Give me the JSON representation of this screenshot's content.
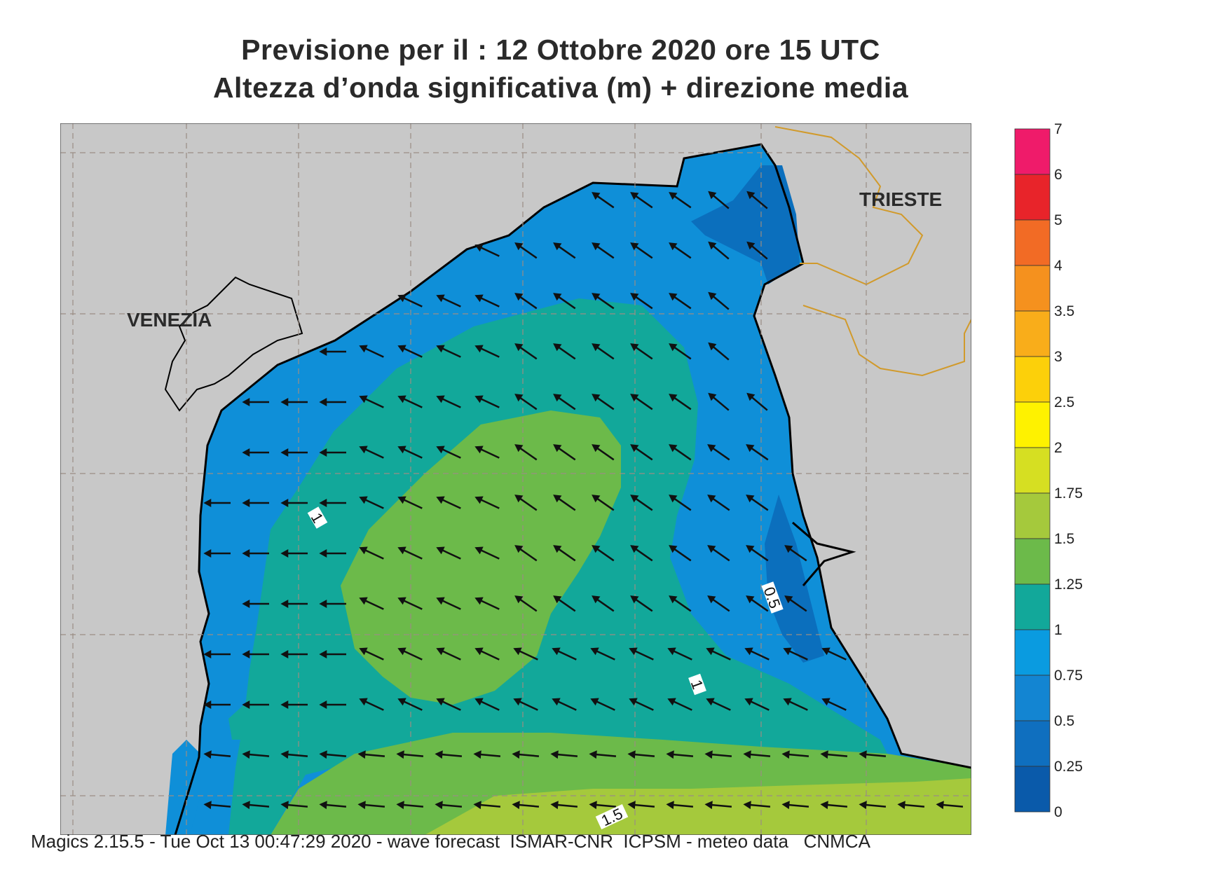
{
  "title": {
    "line1": "Previsione per il  :  12  Ottobre  2020   ore 15 UTC",
    "line2": "Altezza d’onda significativa (m) + direzione media"
  },
  "places": {
    "venezia": "VENEZIA",
    "trieste": "TRIESTE"
  },
  "contour_labels": [
    "1",
    "0.5",
    "1",
    "1.5"
  ],
  "legend": {
    "levels": [
      "7",
      "6",
      "5",
      "4",
      "3.5",
      "3",
      "2.5",
      "2",
      "1.75",
      "1.5",
      "1.25",
      "1",
      "0.75",
      "0.5",
      "0.25",
      "0"
    ],
    "colors": [
      "#ef1b6a",
      "#e8242a",
      "#f26b25",
      "#f5911e",
      "#f9ad1a",
      "#fcd00a",
      "#fef200",
      "#d6df22",
      "#a5c93c",
      "#6cba4a",
      "#12a89a",
      "#0a9be0",
      "#1385d2",
      "#0f6fbf",
      "#0a5aaa"
    ]
  },
  "colors": {
    "land": "#c8c8c8",
    "coast": "#000000",
    "border": "#d19a2b",
    "grid": "#9a8d84",
    "arrow": "#111111"
  },
  "footer": "Magics 2.15.5 - Tue Oct 13 00:47:29 2020 - wave forecast  ISMAR-CNR  ICPSM - meteo data   CNMCA"
}
